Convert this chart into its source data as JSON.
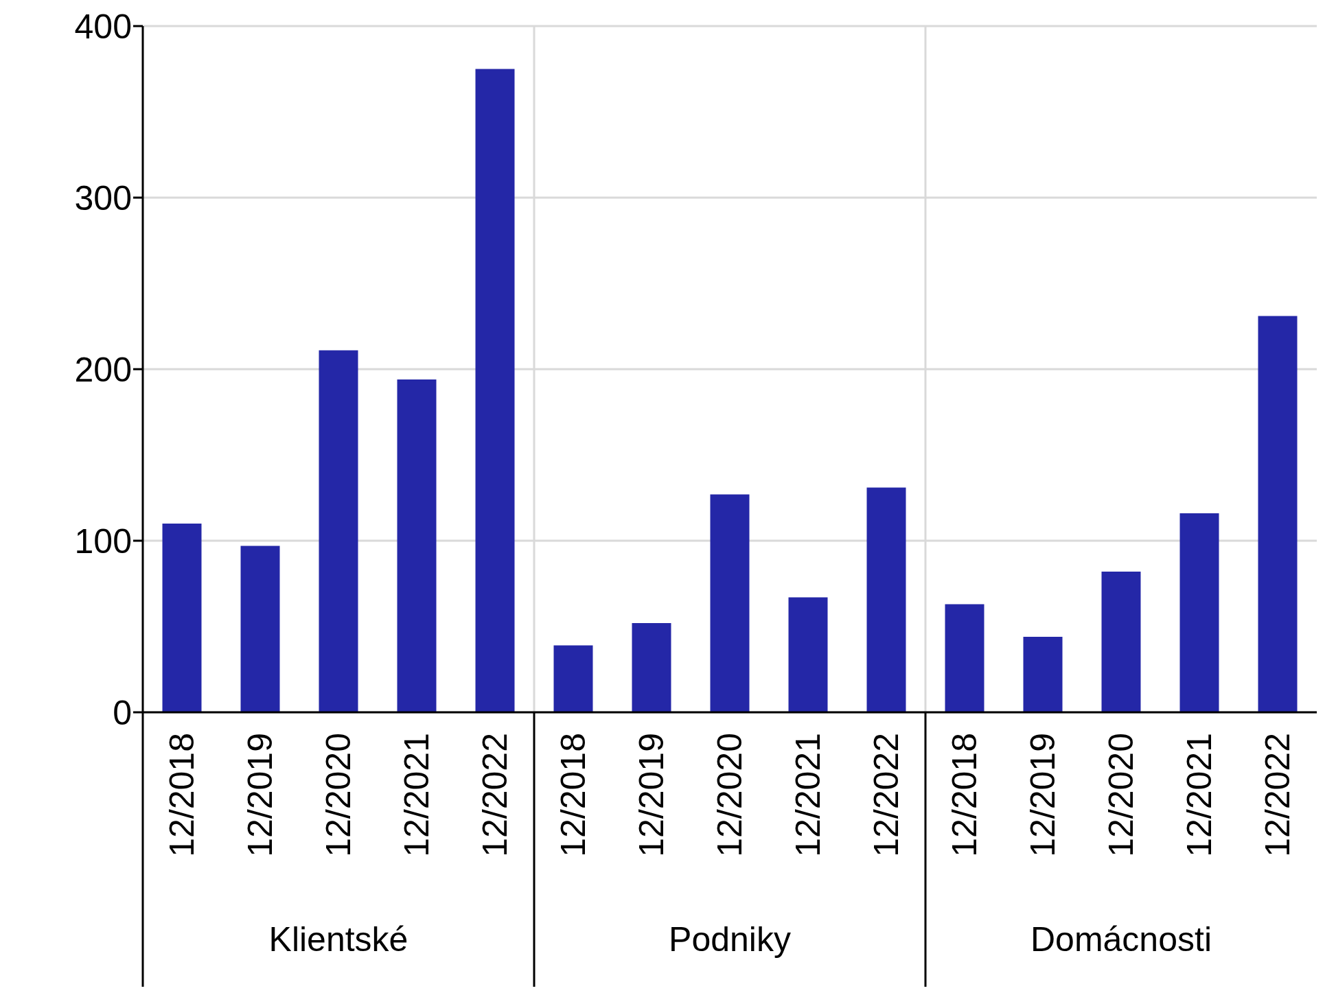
{
  "chart_data": {
    "type": "bar",
    "categories": [
      "12/2018",
      "12/2019",
      "12/2020",
      "12/2021",
      "12/2022",
      "12/2018",
      "12/2019",
      "12/2020",
      "12/2021",
      "12/2022",
      "12/2018",
      "12/2019",
      "12/2020",
      "12/2021",
      "12/2022"
    ],
    "values": [
      110,
      97,
      211,
      194,
      375,
      39,
      52,
      127,
      67,
      131,
      63,
      44,
      82,
      116,
      231
    ],
    "color": "#2427a7",
    "ylim": [
      0,
      400
    ],
    "yticks": [
      0,
      100,
      200,
      300,
      400
    ],
    "grid": true,
    "annotations": [
      "Klientské",
      "Podniky",
      "Domácnosti"
    ]
  }
}
